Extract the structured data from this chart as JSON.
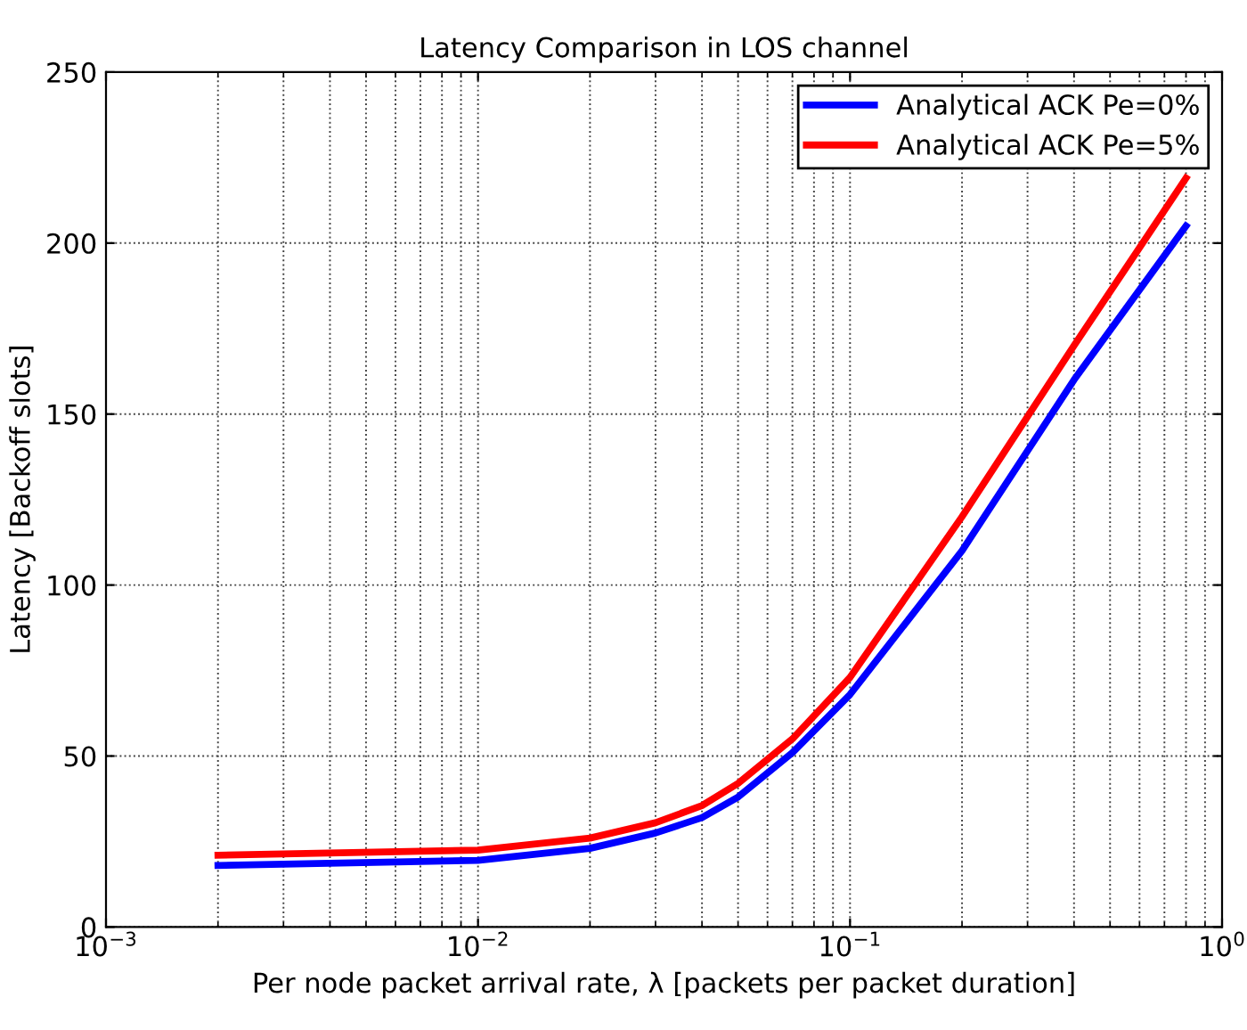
{
  "chart_data": {
    "type": "line",
    "title": "Latency Comparison in LOS channel",
    "xlabel": "Per node packet arrival rate, λ [packets per packet duration]",
    "ylabel": "Latency [Backoff slots]",
    "x": [
      0.002,
      0.01,
      0.02,
      0.03,
      0.04,
      0.05,
      0.07,
      0.1,
      0.2,
      0.4,
      0.8
    ],
    "series": [
      {
        "name": "Analytical ACK Pe=0%",
        "color": "#0000ff",
        "values": [
          18,
          19.5,
          23,
          27.5,
          32,
          38,
          51,
          68,
          110,
          160,
          205
        ]
      },
      {
        "name": "Analytical ACK Pe=5%",
        "color": "#ff0000",
        "values": [
          21,
          22.5,
          26,
          30.5,
          35.5,
          42,
          55,
          73,
          120,
          170,
          219
        ]
      }
    ],
    "log": "x",
    "xlim": [
      0.001,
      1
    ],
    "xticks": [
      {
        "value": 0.001,
        "label": "10$^{−3}$"
      },
      {
        "value": 0.01,
        "label": "10$^{−2}$"
      },
      {
        "value": 0.1,
        "label": "10$^{−1}$"
      },
      {
        "value": 1,
        "label": "10$^{0}$"
      }
    ],
    "ylim": [
      0,
      250
    ],
    "yticks": [
      0,
      50,
      100,
      150,
      200,
      250
    ],
    "grid": true,
    "legend": "top right",
    "marker": "none",
    "line_style": "solid"
  }
}
